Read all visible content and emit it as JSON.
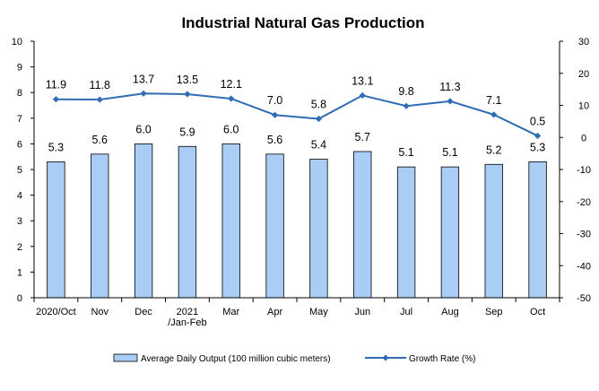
{
  "chart_data": {
    "type": "bar",
    "title": "Industrial Natural Gas Production",
    "categories": [
      [
        "2020/Oct"
      ],
      [
        "Nov"
      ],
      [
        "Dec"
      ],
      [
        "2021",
        "/Jan-Feb"
      ],
      [
        "Mar"
      ],
      [
        "Apr"
      ],
      [
        "May"
      ],
      [
        "Jun"
      ],
      [
        "Jul"
      ],
      [
        "Aug"
      ],
      [
        "Sep"
      ],
      [
        "Oct"
      ]
    ],
    "series": [
      {
        "name": "Average Daily Output (100 million cubic meters)",
        "type": "bar",
        "axis": "left",
        "color": "#a9cdf4",
        "values": [
          5.3,
          5.6,
          6.0,
          5.9,
          6.0,
          5.6,
          5.4,
          5.7,
          5.1,
          5.1,
          5.2,
          5.3
        ]
      },
      {
        "name": "Growth Rate (%)",
        "type": "line",
        "axis": "right",
        "color": "#2e6db4",
        "values": [
          11.9,
          11.8,
          13.7,
          13.5,
          12.1,
          7.0,
          5.8,
          13.1,
          9.8,
          11.3,
          7.1,
          0.5
        ]
      }
    ],
    "ylim_left": [
      0,
      10
    ],
    "yticks_left": [
      0,
      1,
      2,
      3,
      4,
      5,
      6,
      7,
      8,
      9,
      10
    ],
    "ylim_right": [
      -50,
      30
    ],
    "yticks_right": [
      -50,
      -40,
      -30,
      -20,
      -10,
      0,
      10,
      20,
      30
    ],
    "value_labels_bars": [
      "5.3",
      "5.6",
      "6.0",
      "5.9",
      "6.0",
      "5.6",
      "5.4",
      "5.7",
      "5.1",
      "5.1",
      "5.2",
      "5.3"
    ],
    "value_labels_line": [
      "11.9",
      "11.8",
      "13.7",
      "13.5",
      "12.1",
      "7.0",
      "5.8",
      "13.1",
      "9.8",
      "11.3",
      "7.1",
      "0.5"
    ],
    "grid": false,
    "legend_position": "bottom"
  }
}
